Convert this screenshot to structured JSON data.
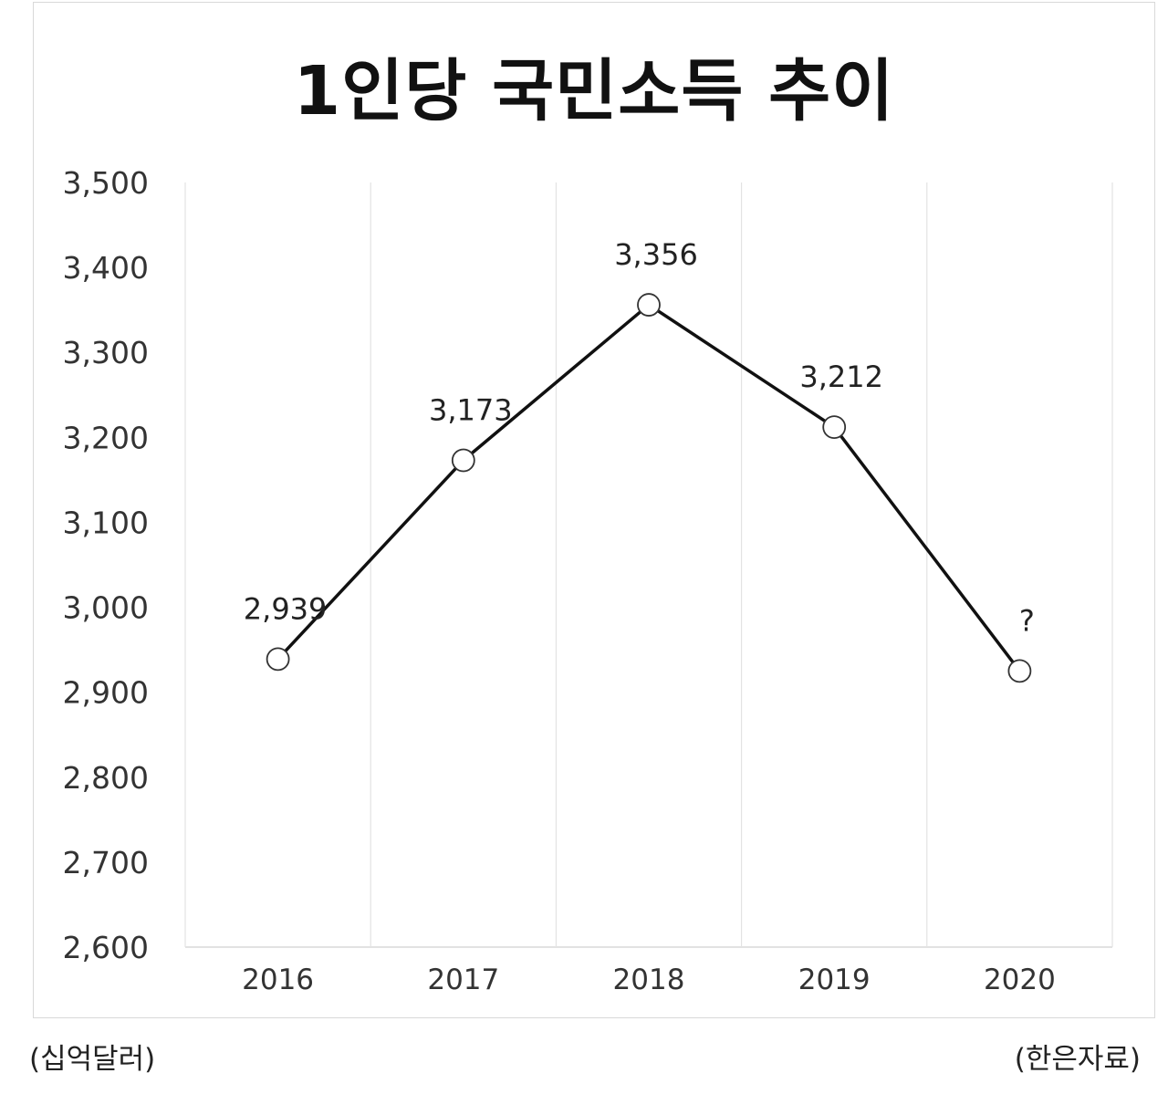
{
  "chart_data": {
    "type": "line",
    "title": "1인당 국민소득 추이",
    "categories": [
      "2016",
      "2017",
      "2018",
      "2019",
      "2020"
    ],
    "series": [
      {
        "values": [
          2939,
          3173,
          3356,
          3212,
          2925
        ]
      }
    ],
    "data_labels": [
      "2,939",
      "3,173",
      "3,356",
      "3,212",
      "?"
    ],
    "yticks": [
      "2,600",
      "2,700",
      "2,800",
      "2,900",
      "3,000",
      "3,100",
      "3,200",
      "3,300",
      "3,400",
      "3,500"
    ],
    "ylim": [
      2600,
      3500
    ],
    "grid": "vertical",
    "line_color": "#111111",
    "marker_fill": "#ffffff"
  },
  "notes": {
    "unit": "(십억달러)",
    "source": "(한은자료)"
  }
}
